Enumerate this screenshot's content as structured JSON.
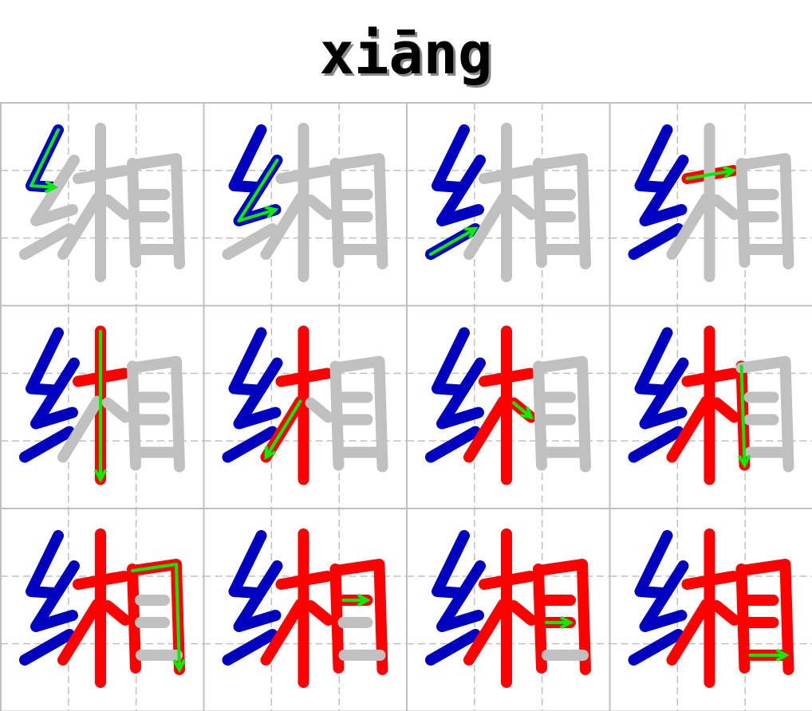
{
  "title": "xiāng",
  "character": "缃",
  "colors": {
    "unwritten": "#c0c0c0",
    "radical": "#0000c0",
    "component": "#ff0000",
    "arrow": "#00ee00",
    "grid": "#c0c0c0"
  },
  "layout": {
    "columns": 4,
    "rows": 3
  },
  "strokes": [
    {
      "order": 1,
      "part": "radical"
    },
    {
      "order": 2,
      "part": "radical"
    },
    {
      "order": 3,
      "part": "radical"
    },
    {
      "order": 4,
      "part": "component"
    },
    {
      "order": 5,
      "part": "component"
    },
    {
      "order": 6,
      "part": "component"
    },
    {
      "order": 7,
      "part": "component"
    },
    {
      "order": 8,
      "part": "component"
    },
    {
      "order": 9,
      "part": "component"
    },
    {
      "order": 10,
      "part": "component"
    },
    {
      "order": 11,
      "part": "component"
    },
    {
      "order": 12,
      "part": "component"
    }
  ]
}
